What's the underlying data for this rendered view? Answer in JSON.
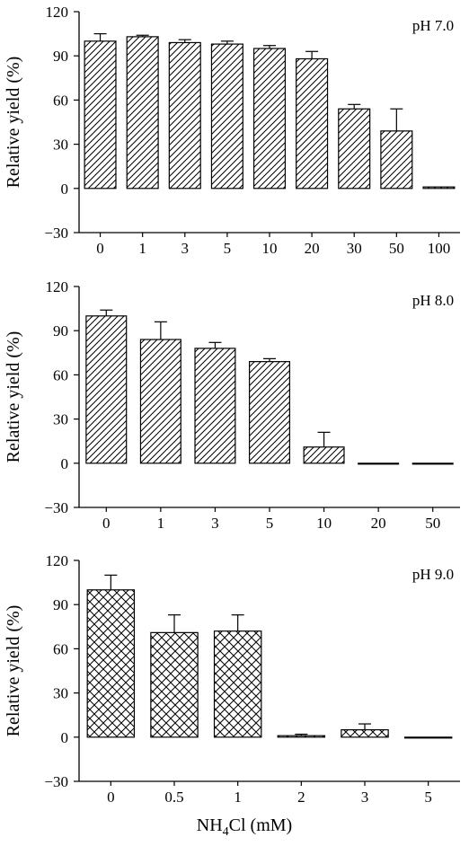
{
  "chart_data": [
    {
      "type": "bar",
      "annotation": "pH 7.0",
      "ylabel": "Relative yield (%)",
      "xlabel": "",
      "ylim": [
        -30,
        120
      ],
      "yticks": [
        -30,
        0,
        30,
        60,
        90,
        120
      ],
      "categories": [
        "0",
        "1",
        "3",
        "5",
        "10",
        "20",
        "30",
        "50",
        "100"
      ],
      "values": [
        100,
        103,
        99,
        98,
        95,
        88,
        54,
        39,
        1
      ],
      "errors": [
        5,
        1,
        2,
        2,
        2,
        5,
        3,
        15,
        0
      ],
      "pattern": "diagonal-hatch",
      "grid": false
    },
    {
      "type": "bar",
      "annotation": "pH 8.0",
      "ylabel": "Relative yield (%)",
      "xlabel": "",
      "ylim": [
        -30,
        120
      ],
      "yticks": [
        -30,
        0,
        30,
        60,
        90,
        120
      ],
      "categories": [
        "0",
        "1",
        "3",
        "5",
        "10",
        "20",
        "50"
      ],
      "values": [
        100,
        84,
        78,
        69,
        11,
        0,
        0
      ],
      "errors": [
        4,
        12,
        4,
        2,
        10,
        0,
        0
      ],
      "pattern": "diagonal-hatch",
      "grid": false
    },
    {
      "type": "bar",
      "annotation": "pH 9.0",
      "ylabel": "Relative yield (%)",
      "xlabel": "NH4Cl (mM)",
      "xlabel_parts": {
        "main": "NH",
        "sub": "4",
        "rest": "Cl (mM)"
      },
      "ylim": [
        -30,
        120
      ],
      "yticks": [
        -30,
        0,
        30,
        60,
        90,
        120
      ],
      "categories": [
        "0",
        "0.5",
        "1",
        "2",
        "3",
        "5"
      ],
      "values": [
        100,
        71,
        72,
        1,
        5,
        0
      ],
      "errors": [
        10,
        12,
        11,
        1,
        4,
        0
      ],
      "pattern": "cross-hatch",
      "grid": false
    }
  ]
}
